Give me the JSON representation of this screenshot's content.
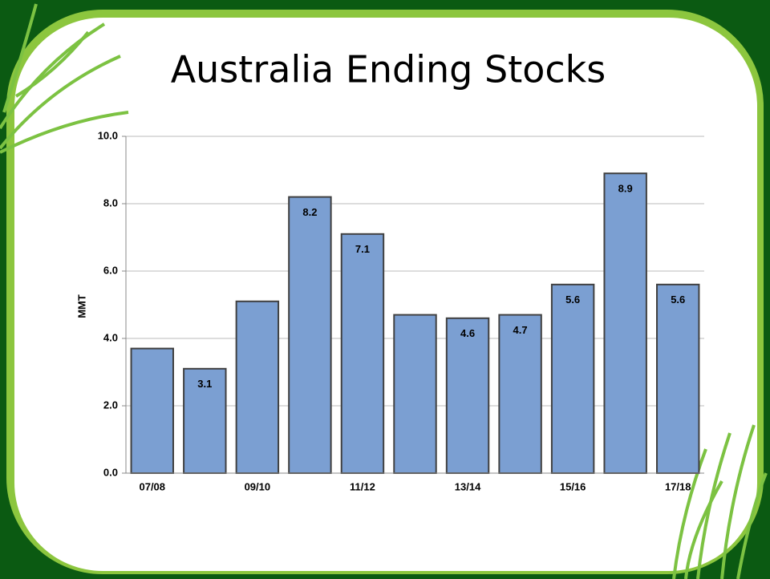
{
  "chart_data": {
    "type": "bar",
    "title": "Australia Ending Stocks",
    "y_label": "MMT",
    "categories": [
      "07/08",
      null,
      "09/10",
      null,
      "11/12",
      null,
      "13/14",
      null,
      "15/16",
      null,
      "17/18"
    ],
    "values": [
      3.7,
      3.1,
      5.1,
      8.2,
      7.1,
      4.7,
      4.6,
      4.7,
      5.6,
      8.9,
      5.6
    ],
    "value_labels": [
      null,
      "3.1",
      null,
      "8.2",
      "7.1",
      null,
      "4.6",
      "4.7",
      "5.6",
      "8.9",
      "5.6"
    ],
    "color": "#7b9fd2",
    "ylim": [
      0,
      10
    ],
    "yticks": [
      {
        "value": 0,
        "label": "0.0"
      },
      {
        "value": 2,
        "label": "2.0"
      },
      {
        "value": 4,
        "label": "4.0"
      },
      {
        "value": 6,
        "label": "6.0"
      },
      {
        "value": 8,
        "label": "8.0"
      },
      {
        "value": 10,
        "label": "10.0"
      }
    ],
    "grid": true
  }
}
